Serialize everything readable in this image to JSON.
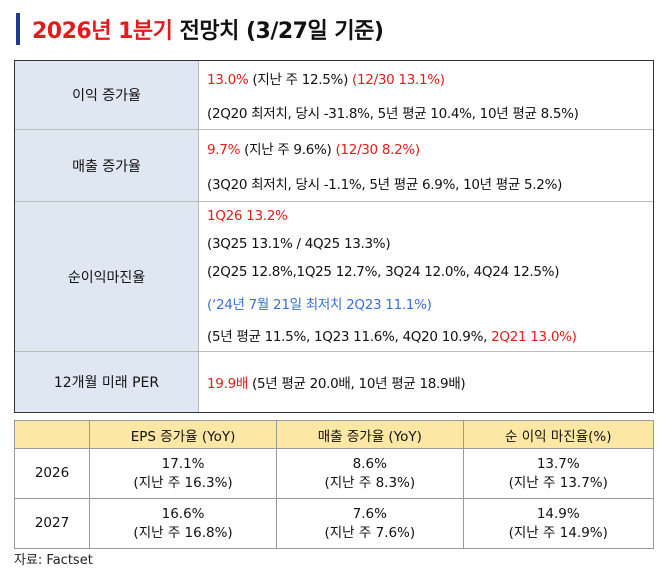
{
  "title": {
    "red": "2026년 1분기",
    "black": "전망치 (3/27일 기준)"
  },
  "accent_color": "#1f3a93",
  "highlight_red": "#e31b1b",
  "highlight_blue": "#3a6fd8",
  "rows": [
    {
      "label": "이익 증가율",
      "lines": [
        [
          {
            "t": "13.0%",
            "c": "red"
          },
          {
            "t": " (지난 주 12.5%) "
          },
          {
            "t": "(12/30 13.1%)",
            "c": "red"
          }
        ],
        [
          {
            "t": "(2Q20 최저치, 당시 -31.8%, 5년 평균 10.4%, 10년 평균 8.5%)"
          }
        ]
      ]
    },
    {
      "label": "매출 증가율",
      "lines": [
        [
          {
            "t": "9.7%",
            "c": "red"
          },
          {
            "t": " (지난 주 9.6%) "
          },
          {
            "t": "(12/30 8.2%)",
            "c": "red"
          }
        ],
        [
          {
            "t": "(3Q20 최저치, 당시 -1.1%, 5년 평균 6.9%, 10년 평균 5.2%)"
          }
        ]
      ]
    },
    {
      "label": "순이익마진율",
      "lines": [
        [
          {
            "t": "1Q26 13.2%",
            "c": "red"
          }
        ],
        [
          {
            "t": "(3Q25 13.1% / 4Q25 13.3%)"
          }
        ],
        [
          {
            "t": "(2Q25 12.8%,1Q25 12.7%, 3Q24 12.0%, 4Q24 12.5%)"
          }
        ],
        [
          {
            "t": "(‘24년 7월 21일 최저치 2Q23 11.1%)",
            "c": "blue"
          }
        ],
        [
          {
            "t": "(5년 평균 11.5%, 1Q23 11.6%, 4Q20 10.9%, "
          },
          {
            "t": "2Q21 13.0%)",
            "c": "red"
          }
        ]
      ]
    },
    {
      "label": "12개월 미래 PER",
      "lines": [
        [
          {
            "t": "19.9배",
            "c": "red"
          },
          {
            "t": " (5년 평균 20.0배, 10년 평균 18.9배)"
          }
        ]
      ]
    }
  ],
  "table": {
    "headers": [
      "",
      "EPS 증가율 (YoY)",
      "매출 증가율 (YoY)",
      "순 이익 마진율(%)"
    ],
    "rows": [
      {
        "year": "2026",
        "cells": [
          [
            "17.1%",
            "(지난 주 16.3%)"
          ],
          [
            "8.6%",
            "(지난 주 8.3%)"
          ],
          [
            "13.7%",
            "(지난 주 13.7%)"
          ]
        ]
      },
      {
        "year": "2027",
        "cells": [
          [
            "16.6%",
            "(지난 주 16.8%)"
          ],
          [
            "7.6%",
            "(지난 주 7.6%)"
          ],
          [
            "14.9%",
            "(지난 주 14.9%)"
          ]
        ]
      }
    ]
  },
  "source": "자료: Factset"
}
